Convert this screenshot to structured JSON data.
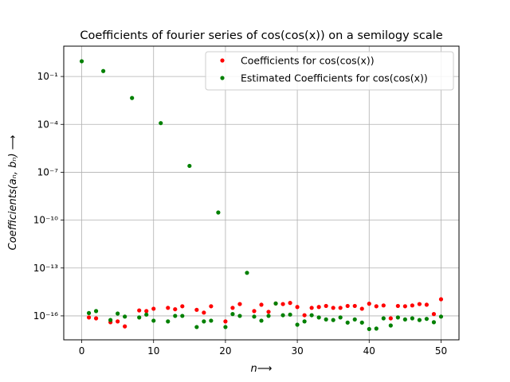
{
  "chart_data": {
    "type": "scatter",
    "title": "Coefficients of fourier series of cos(cos(x)) on a semilogy scale",
    "xlabel": "n⟶",
    "ylabel": "Coefficients(aₙ, bₙ) ⟶",
    "xlim": [
      -2.5,
      52.5
    ],
    "ylim_log10": [
      -17.5,
      0.9
    ],
    "yscale": "log",
    "grid": true,
    "legend_position": "top-right",
    "x_ticks": [
      0,
      10,
      20,
      30,
      40,
      50
    ],
    "y_ticks": [
      {
        "exp": -1,
        "label": "10⁻¹"
      },
      {
        "exp": -4,
        "label": "10⁻⁴"
      },
      {
        "exp": -7,
        "label": "10⁻⁷"
      },
      {
        "exp": -10,
        "label": "10⁻¹⁰"
      },
      {
        "exp": -13,
        "label": "10⁻¹³"
      },
      {
        "exp": -16,
        "label": "10⁻¹⁶"
      }
    ],
    "series": [
      {
        "name": "Coefficients for cos(cos(x))",
        "color": "#ff0000",
        "points": [
          [
            1,
            8e-17
          ],
          [
            2,
            7e-17
          ],
          [
            4,
            4e-17
          ],
          [
            5,
            4.5e-17
          ],
          [
            6,
            2.2e-17
          ],
          [
            8,
            2.2e-16
          ],
          [
            9,
            2e-16
          ],
          [
            10,
            2.8e-16
          ],
          [
            12,
            3.2e-16
          ],
          [
            13,
            2.6e-16
          ],
          [
            14,
            4e-16
          ],
          [
            16,
            2.4e-16
          ],
          [
            17,
            1.6e-16
          ],
          [
            18,
            4e-16
          ],
          [
            20,
            4.5e-17
          ],
          [
            21,
            3.2e-16
          ],
          [
            22,
            5.5e-16
          ],
          [
            24,
            2e-16
          ],
          [
            25,
            5e-16
          ],
          [
            26,
            1.8e-16
          ],
          [
            27,
            6e-16
          ],
          [
            28,
            5.5e-16
          ],
          [
            29,
            6.5e-16
          ],
          [
            30,
            3.6e-16
          ],
          [
            31,
            1.1e-16
          ],
          [
            32,
            3.2e-16
          ],
          [
            33,
            3.6e-16
          ],
          [
            34,
            4.2e-16
          ],
          [
            35,
            3.2e-16
          ],
          [
            36,
            3.2e-16
          ],
          [
            37,
            4.2e-16
          ],
          [
            38,
            4.2e-16
          ],
          [
            39,
            2.8e-16
          ],
          [
            40,
            5.8e-16
          ],
          [
            41,
            4e-16
          ],
          [
            42,
            4.5e-16
          ],
          [
            43,
            7e-17
          ],
          [
            44,
            4.2e-16
          ],
          [
            45,
            4e-16
          ],
          [
            46,
            4.5e-16
          ],
          [
            47,
            5.5e-16
          ],
          [
            48,
            5e-16
          ],
          [
            49,
            1.3e-16
          ],
          [
            50,
            1.1e-15
          ]
        ]
      },
      {
        "name": "Estimated Coefficients for cos(cos(x))",
        "color": "#008000",
        "points": [
          [
            0,
            0.9
          ],
          [
            1,
            1.5e-16
          ],
          [
            2,
            2e-16
          ],
          [
            3,
            0.22
          ],
          [
            4,
            5.5e-17
          ],
          [
            5,
            1.4e-16
          ],
          [
            6,
            9e-17
          ],
          [
            7,
            0.0045
          ],
          [
            8,
            8e-17
          ],
          [
            9,
            1.2e-16
          ],
          [
            10,
            5e-17
          ],
          [
            11,
            0.00012
          ],
          [
            12,
            4.5e-17
          ],
          [
            13,
            1e-16
          ],
          [
            14,
            1e-16
          ],
          [
            15,
            2.5e-07
          ],
          [
            16,
            2e-17
          ],
          [
            17,
            4.5e-17
          ],
          [
            18,
            5e-17
          ],
          [
            19,
            3e-10
          ],
          [
            20,
            2e-17
          ],
          [
            21,
            1.3e-16
          ],
          [
            22,
            1e-16
          ],
          [
            23,
            5e-14
          ],
          [
            24,
            9e-17
          ],
          [
            25,
            5e-17
          ],
          [
            26,
            1e-16
          ],
          [
            27,
            6e-16
          ],
          [
            28,
            1.1e-16
          ],
          [
            29,
            1.2e-16
          ],
          [
            30,
            2.8e-17
          ],
          [
            31,
            4.5e-17
          ],
          [
            32,
            1.1e-16
          ],
          [
            33,
            8e-17
          ],
          [
            34,
            6e-17
          ],
          [
            35,
            5.5e-17
          ],
          [
            36,
            8e-17
          ],
          [
            37,
            3.8e-17
          ],
          [
            38,
            6e-17
          ],
          [
            39,
            3.8e-17
          ],
          [
            40,
            1.5e-17
          ],
          [
            41,
            1.6e-17
          ],
          [
            42,
            7e-17
          ],
          [
            43,
            2.5e-17
          ],
          [
            44,
            8e-17
          ],
          [
            45,
            6e-17
          ],
          [
            46,
            7e-17
          ],
          [
            47,
            5.5e-17
          ],
          [
            48,
            6.5e-17
          ],
          [
            49,
            4e-17
          ],
          [
            50,
            9e-17
          ]
        ]
      }
    ]
  }
}
